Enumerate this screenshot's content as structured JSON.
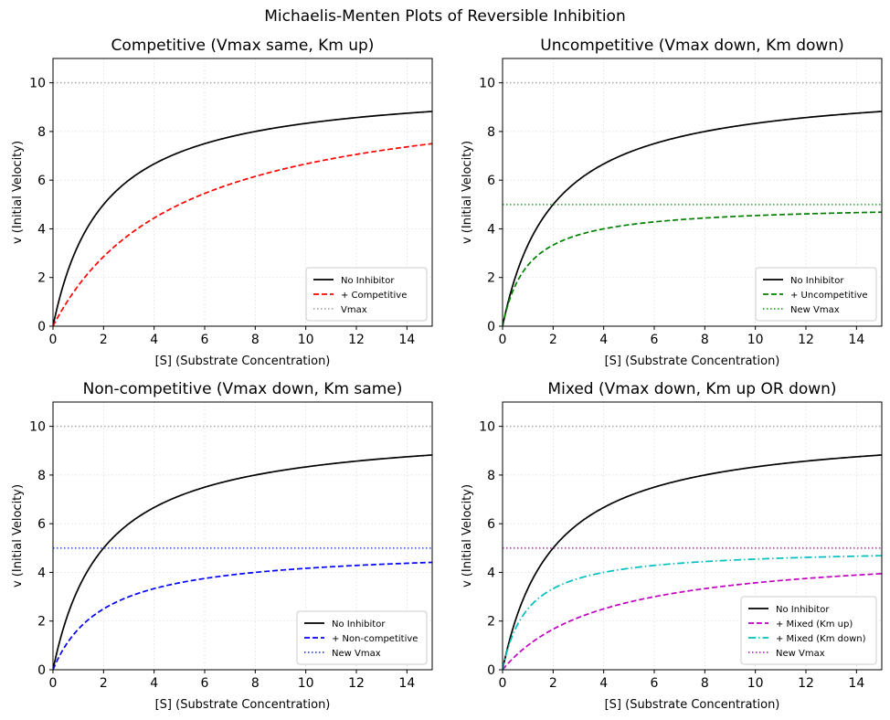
{
  "figure": {
    "title": "Michaelis-Menten Plots of Reversible Inhibition"
  },
  "chart_data": [
    {
      "type": "line",
      "title": "Competitive (Vmax same, Km up)",
      "xlabel": "[S] (Substrate Concentration)",
      "ylabel": "v (Initial Velocity)",
      "xlim": [
        0,
        15
      ],
      "ylim": [
        0,
        11
      ],
      "xticks": [
        "0",
        "2",
        "4",
        "6",
        "8",
        "10",
        "12",
        "14"
      ],
      "yticks": [
        "0",
        "2",
        "4",
        "6",
        "8",
        "10"
      ],
      "grid": true,
      "legend_position": "lower-right",
      "series": [
        {
          "name": "No Inhibitor",
          "kind": "curve",
          "vmax": 10,
          "km": 2,
          "color": "#000000",
          "style": "solid"
        },
        {
          "name": "+ Competitive",
          "kind": "curve",
          "vmax": 10,
          "km": 5,
          "color": "#ff0000",
          "style": "dashed"
        },
        {
          "name": "Vmax",
          "kind": "hline",
          "y": 10,
          "color": "#aaaaaa",
          "style": "dotted"
        }
      ]
    },
    {
      "type": "line",
      "title": "Uncompetitive (Vmax down, Km down)",
      "xlabel": "[S] (Substrate Concentration)",
      "ylabel": "v (Initial Velocity)",
      "xlim": [
        0,
        15
      ],
      "ylim": [
        0,
        11
      ],
      "xticks": [
        "0",
        "2",
        "4",
        "6",
        "8",
        "10",
        "12",
        "14"
      ],
      "yticks": [
        "0",
        "2",
        "4",
        "6",
        "8",
        "10"
      ],
      "grid": true,
      "legend_position": "lower-right",
      "series": [
        {
          "name": "No Inhibitor",
          "kind": "curve",
          "vmax": 10,
          "km": 2,
          "color": "#000000",
          "style": "solid"
        },
        {
          "name": "+ Uncompetitive",
          "kind": "curve",
          "vmax": 5,
          "km": 1,
          "color": "#008000",
          "style": "dashed"
        },
        {
          "name": "New Vmax",
          "kind": "hline",
          "y": 5,
          "color": "#2ca02c",
          "style": "dotted"
        },
        {
          "name": "",
          "kind": "hline",
          "y": 10,
          "color": "#aaaaaa",
          "style": "dotted"
        }
      ]
    },
    {
      "type": "line",
      "title": "Non-competitive (Vmax down, Km same)",
      "xlabel": "[S] (Substrate Concentration)",
      "ylabel": "v (Initial Velocity)",
      "xlim": [
        0,
        15
      ],
      "ylim": [
        0,
        11
      ],
      "xticks": [
        "0",
        "2",
        "4",
        "6",
        "8",
        "10",
        "12",
        "14"
      ],
      "yticks": [
        "0",
        "2",
        "4",
        "6",
        "8",
        "10"
      ],
      "grid": true,
      "legend_position": "lower-right",
      "series": [
        {
          "name": "No Inhibitor",
          "kind": "curve",
          "vmax": 10,
          "km": 2,
          "color": "#000000",
          "style": "solid"
        },
        {
          "name": "+ Non-competitive",
          "kind": "curve",
          "vmax": 5,
          "km": 2,
          "color": "#0000ff",
          "style": "dashed"
        },
        {
          "name": "New Vmax",
          "kind": "hline",
          "y": 5,
          "color": "#3344ff",
          "style": "dotted"
        },
        {
          "name": "",
          "kind": "hline",
          "y": 10,
          "color": "#aaaaaa",
          "style": "dotted"
        }
      ]
    },
    {
      "type": "line",
      "title": "Mixed (Vmax down, Km up OR down)",
      "xlabel": "[S] (Substrate Concentration)",
      "ylabel": "v (Initial Velocity)",
      "xlim": [
        0,
        15
      ],
      "ylim": [
        0,
        11
      ],
      "xticks": [
        "0",
        "2",
        "4",
        "6",
        "8",
        "10",
        "12",
        "14"
      ],
      "yticks": [
        "0",
        "2",
        "4",
        "6",
        "8",
        "10"
      ],
      "grid": true,
      "legend_position": "lower-right",
      "series": [
        {
          "name": "No Inhibitor",
          "kind": "curve",
          "vmax": 10,
          "km": 2,
          "color": "#000000",
          "style": "solid"
        },
        {
          "name": "+ Mixed (Km up)",
          "kind": "curve",
          "vmax": 5,
          "km": 4,
          "color": "#c000c0",
          "style": "dashed"
        },
        {
          "name": "+ Mixed (Km down)",
          "kind": "curve",
          "vmax": 5,
          "km": 1,
          "color": "#00bfbf",
          "style": "dashdot"
        },
        {
          "name": "New Vmax",
          "kind": "hline",
          "y": 5,
          "color": "#aa33aa",
          "style": "dotted"
        },
        {
          "name": "",
          "kind": "hline",
          "y": 10,
          "color": "#aaaaaa",
          "style": "dotted"
        }
      ]
    }
  ]
}
